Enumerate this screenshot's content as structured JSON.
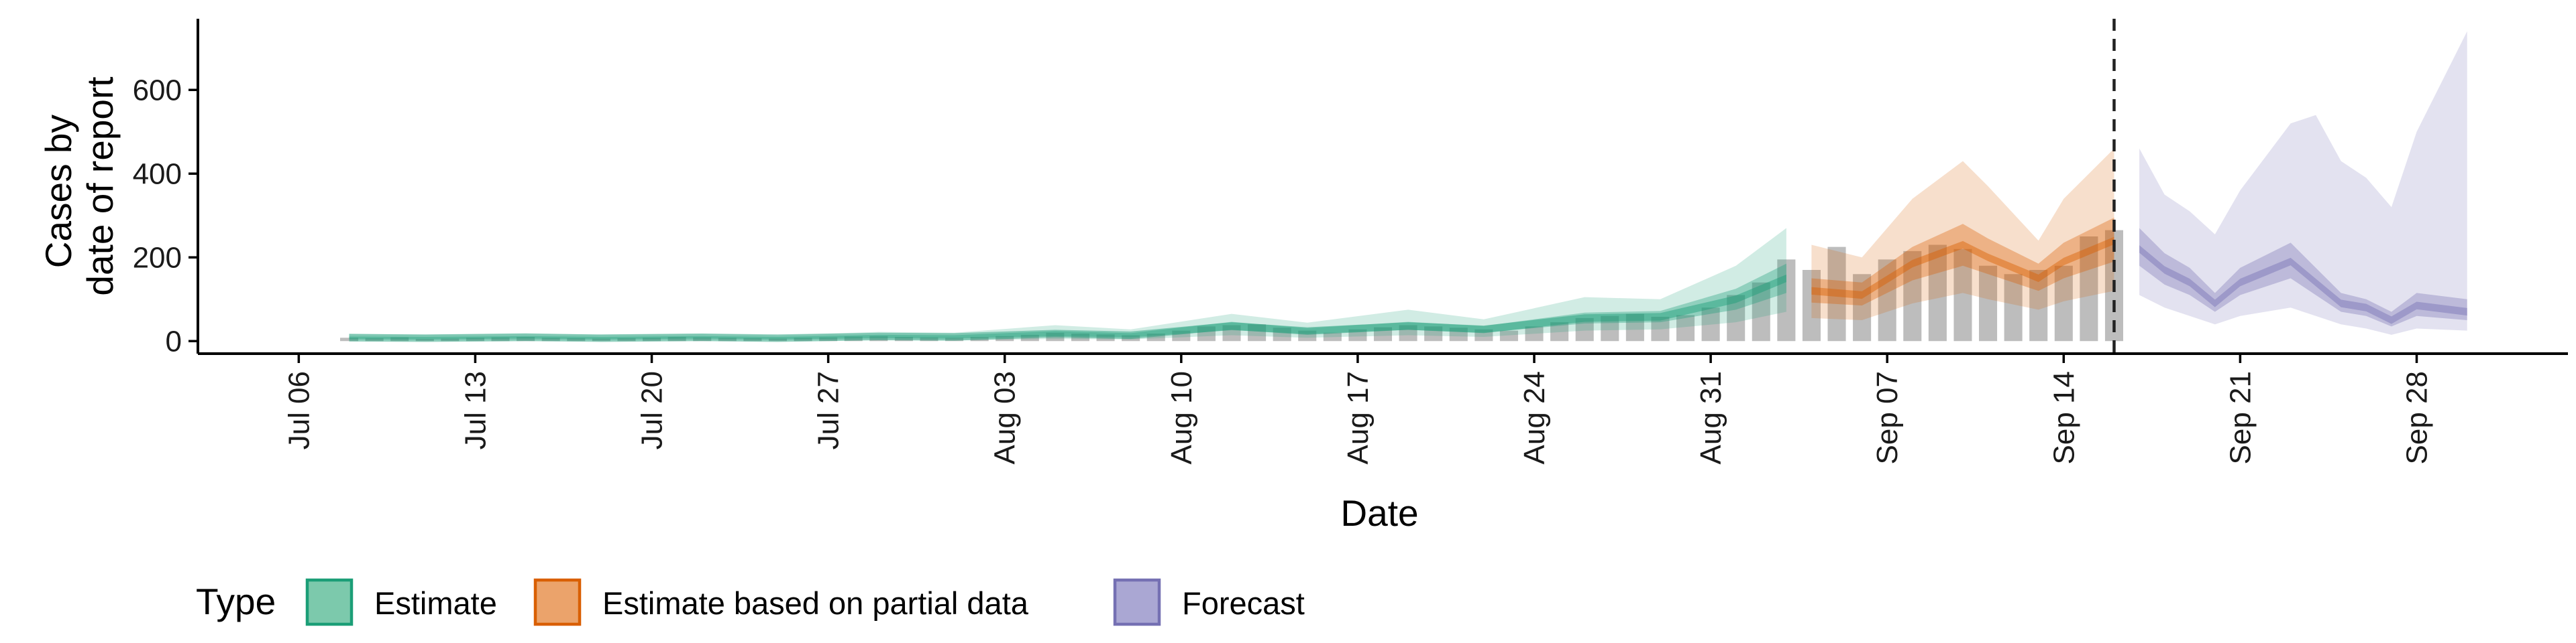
{
  "chart_data": {
    "type": "area",
    "title": "",
    "xlabel": "Date",
    "ylabel": [
      "Cases by",
      "date of report"
    ],
    "ylim": [
      -30,
      770
    ],
    "yticks": [
      0,
      200,
      400,
      600
    ],
    "xlim": [
      "2020-07-02",
      "2020-10-04"
    ],
    "xticks": [
      "2020-07-06",
      "2020-07-13",
      "2020-07-20",
      "2020-07-27",
      "2020-08-03",
      "2020-08-10",
      "2020-08-17",
      "2020-08-24",
      "2020-08-31",
      "2020-09-07",
      "2020-09-14",
      "2020-09-21",
      "2020-09-28"
    ],
    "xtick_labels": [
      "Jul 06",
      "Jul 13",
      "Jul 20",
      "Jul 27",
      "Aug 03",
      "Aug 10",
      "Aug 17",
      "Aug 24",
      "Aug 31",
      "Sep 07",
      "Sep 14",
      "Sep 21",
      "Sep 28"
    ],
    "cutoff_date": "2020-09-16",
    "grid": false,
    "legend": {
      "title": "Type",
      "position": "bottom",
      "items": [
        {
          "label": "Estimate",
          "fill": "#7cc9ac",
          "stroke": "#1b9e77"
        },
        {
          "label": "Estimate based on partial data",
          "fill": "#eba36b",
          "stroke": "#d95f02"
        },
        {
          "label": "Forecast",
          "fill": "#aaa7d3",
          "stroke": "#7570b3"
        }
      ]
    },
    "colors": {
      "Estimate": "#1b9e77",
      "Estimate based on partial data": "#d95f02",
      "Forecast": "#7570b3",
      "bars": "#bdbdbd"
    },
    "reported_cases": [
      {
        "date": "2020-07-08",
        "value": 8
      },
      {
        "date": "2020-07-09",
        "value": 7
      },
      {
        "date": "2020-07-10",
        "value": 9
      },
      {
        "date": "2020-07-11",
        "value": 5
      },
      {
        "date": "2020-07-12",
        "value": 6
      },
      {
        "date": "2020-07-13",
        "value": 8
      },
      {
        "date": "2020-07-14",
        "value": 9
      },
      {
        "date": "2020-07-15",
        "value": 10
      },
      {
        "date": "2020-07-16",
        "value": 8
      },
      {
        "date": "2020-07-17",
        "value": 7
      },
      {
        "date": "2020-07-18",
        "value": 6
      },
      {
        "date": "2020-07-19",
        "value": 7
      },
      {
        "date": "2020-07-20",
        "value": 8
      },
      {
        "date": "2020-07-21",
        "value": 10
      },
      {
        "date": "2020-07-22",
        "value": 9
      },
      {
        "date": "2020-07-23",
        "value": 8
      },
      {
        "date": "2020-07-24",
        "value": 7
      },
      {
        "date": "2020-07-25",
        "value": 6
      },
      {
        "date": "2020-07-26",
        "value": 8
      },
      {
        "date": "2020-07-27",
        "value": 9
      },
      {
        "date": "2020-07-28",
        "value": 11
      },
      {
        "date": "2020-07-29",
        "value": 12
      },
      {
        "date": "2020-07-30",
        "value": 10
      },
      {
        "date": "2020-07-31",
        "value": 9
      },
      {
        "date": "2020-08-01",
        "value": 8
      },
      {
        "date": "2020-08-02",
        "value": 10
      },
      {
        "date": "2020-08-03",
        "value": 12
      },
      {
        "date": "2020-08-04",
        "value": 15
      },
      {
        "date": "2020-08-05",
        "value": 20
      },
      {
        "date": "2020-08-06",
        "value": 18
      },
      {
        "date": "2020-08-07",
        "value": 16
      },
      {
        "date": "2020-08-08",
        "value": 14
      },
      {
        "date": "2020-08-09",
        "value": 18
      },
      {
        "date": "2020-08-10",
        "value": 25
      },
      {
        "date": "2020-08-11",
        "value": 35
      },
      {
        "date": "2020-08-12",
        "value": 38
      },
      {
        "date": "2020-08-13",
        "value": 40
      },
      {
        "date": "2020-08-14",
        "value": 32
      },
      {
        "date": "2020-08-15",
        "value": 25
      },
      {
        "date": "2020-08-16",
        "value": 20
      },
      {
        "date": "2020-08-17",
        "value": 28
      },
      {
        "date": "2020-08-18",
        "value": 33
      },
      {
        "date": "2020-08-19",
        "value": 38
      },
      {
        "date": "2020-08-20",
        "value": 35
      },
      {
        "date": "2020-08-21",
        "value": 32
      },
      {
        "date": "2020-08-22",
        "value": 28
      },
      {
        "date": "2020-08-23",
        "value": 25
      },
      {
        "date": "2020-08-24",
        "value": 35
      },
      {
        "date": "2020-08-25",
        "value": 45
      },
      {
        "date": "2020-08-26",
        "value": 55
      },
      {
        "date": "2020-08-27",
        "value": 60
      },
      {
        "date": "2020-08-28",
        "value": 65
      },
      {
        "date": "2020-08-29",
        "value": 58
      },
      {
        "date": "2020-08-30",
        "value": 62
      },
      {
        "date": "2020-08-31",
        "value": 80
      },
      {
        "date": "2020-09-01",
        "value": 110
      },
      {
        "date": "2020-09-02",
        "value": 140
      },
      {
        "date": "2020-09-03",
        "value": 195
      },
      {
        "date": "2020-09-04",
        "value": 170
      },
      {
        "date": "2020-09-05",
        "value": 225
      },
      {
        "date": "2020-09-06",
        "value": 160
      },
      {
        "date": "2020-09-07",
        "value": 195
      },
      {
        "date": "2020-09-08",
        "value": 215
      },
      {
        "date": "2020-09-09",
        "value": 230
      },
      {
        "date": "2020-09-10",
        "value": 220
      },
      {
        "date": "2020-09-11",
        "value": 180
      },
      {
        "date": "2020-09-12",
        "value": 160
      },
      {
        "date": "2020-09-13",
        "value": 170
      },
      {
        "date": "2020-09-14",
        "value": 180
      },
      {
        "date": "2020-09-15",
        "value": 250
      },
      {
        "date": "2020-09-16",
        "value": 265
      }
    ],
    "series": [
      {
        "name": "Estimate",
        "points": [
          {
            "date": "2020-07-08",
            "median": 8,
            "l50": 5,
            "u50": 11,
            "l90": 2,
            "u90": 18
          },
          {
            "date": "2020-07-11",
            "median": 7,
            "l50": 4,
            "u50": 10,
            "l90": 1,
            "u90": 15
          },
          {
            "date": "2020-07-15",
            "median": 9,
            "l50": 6,
            "u50": 12,
            "l90": 2,
            "u90": 19
          },
          {
            "date": "2020-07-18",
            "median": 7,
            "l50": 4,
            "u50": 10,
            "l90": 1,
            "u90": 15
          },
          {
            "date": "2020-07-22",
            "median": 9,
            "l50": 6,
            "u50": 12,
            "l90": 2,
            "u90": 18
          },
          {
            "date": "2020-07-25",
            "median": 7,
            "l50": 4,
            "u50": 10,
            "l90": 1,
            "u90": 14
          },
          {
            "date": "2020-07-29",
            "median": 11,
            "l50": 7,
            "u50": 15,
            "l90": 3,
            "u90": 22
          },
          {
            "date": "2020-08-01",
            "median": 10,
            "l50": 6,
            "u50": 14,
            "l90": 2,
            "u90": 20
          },
          {
            "date": "2020-08-05",
            "median": 18,
            "l50": 12,
            "u50": 24,
            "l90": 5,
            "u90": 38
          },
          {
            "date": "2020-08-08",
            "median": 14,
            "l50": 9,
            "u50": 19,
            "l90": 4,
            "u90": 28
          },
          {
            "date": "2020-08-12",
            "median": 36,
            "l50": 26,
            "u50": 46,
            "l90": 14,
            "u90": 65
          },
          {
            "date": "2020-08-15",
            "median": 24,
            "l50": 17,
            "u50": 31,
            "l90": 8,
            "u90": 44
          },
          {
            "date": "2020-08-19",
            "median": 36,
            "l50": 27,
            "u50": 46,
            "l90": 14,
            "u90": 75
          },
          {
            "date": "2020-08-22",
            "median": 28,
            "l50": 20,
            "u50": 36,
            "l90": 10,
            "u90": 52
          },
          {
            "date": "2020-08-26",
            "median": 55,
            "l50": 42,
            "u50": 68,
            "l90": 25,
            "u90": 105
          },
          {
            "date": "2020-08-29",
            "median": 58,
            "l50": 45,
            "u50": 72,
            "l90": 28,
            "u90": 100
          },
          {
            "date": "2020-09-01",
            "median": 100,
            "l50": 75,
            "u50": 125,
            "l90": 45,
            "u90": 180
          },
          {
            "date": "2020-09-03",
            "median": 150,
            "l50": 115,
            "u50": 185,
            "l90": 70,
            "u90": 270
          }
        ]
      },
      {
        "name": "Estimate based on partial data",
        "points": [
          {
            "date": "2020-09-04",
            "median": 120,
            "l50": 92,
            "u50": 150,
            "l90": 55,
            "u90": 230
          },
          {
            "date": "2020-09-06",
            "median": 110,
            "l50": 85,
            "u50": 140,
            "l90": 50,
            "u90": 200
          },
          {
            "date": "2020-09-08",
            "median": 185,
            "l50": 145,
            "u50": 225,
            "l90": 90,
            "u90": 340
          },
          {
            "date": "2020-09-10",
            "median": 230,
            "l50": 180,
            "u50": 280,
            "l90": 115,
            "u90": 430
          },
          {
            "date": "2020-09-11",
            "median": 200,
            "l50": 160,
            "u50": 245,
            "l90": 100,
            "u90": 370
          },
          {
            "date": "2020-09-13",
            "median": 150,
            "l50": 120,
            "u50": 185,
            "l90": 75,
            "u90": 240
          },
          {
            "date": "2020-09-14",
            "median": 190,
            "l50": 150,
            "u50": 235,
            "l90": 95,
            "u90": 340
          },
          {
            "date": "2020-09-16",
            "median": 240,
            "l50": 190,
            "u50": 295,
            "l90": 120,
            "u90": 460
          }
        ]
      },
      {
        "name": "Forecast",
        "points": [
          {
            "date": "2020-09-17",
            "median": 220,
            "l50": 180,
            "u50": 270,
            "l90": 110,
            "u90": 460
          },
          {
            "date": "2020-09-18",
            "median": 170,
            "l50": 135,
            "u50": 210,
            "l90": 80,
            "u90": 350
          },
          {
            "date": "2020-09-19",
            "median": 140,
            "l50": 110,
            "u50": 175,
            "l90": 60,
            "u90": 310
          },
          {
            "date": "2020-09-20",
            "median": 90,
            "l50": 70,
            "u50": 115,
            "l90": 40,
            "u90": 255
          },
          {
            "date": "2020-09-21",
            "median": 140,
            "l50": 110,
            "u50": 175,
            "l90": 60,
            "u90": 360
          },
          {
            "date": "2020-09-23",
            "median": 190,
            "l50": 150,
            "u50": 235,
            "l90": 80,
            "u90": 520
          },
          {
            "date": "2020-09-24",
            "median": 140,
            "l50": 110,
            "u50": 175,
            "l90": 60,
            "u90": 540
          },
          {
            "date": "2020-09-25",
            "median": 90,
            "l50": 70,
            "u50": 115,
            "l90": 40,
            "u90": 430
          },
          {
            "date": "2020-09-26",
            "median": 80,
            "l50": 60,
            "u50": 100,
            "l90": 30,
            "u90": 390
          },
          {
            "date": "2020-09-27",
            "median": 50,
            "l50": 35,
            "u50": 70,
            "l90": 15,
            "u90": 320
          },
          {
            "date": "2020-09-28",
            "median": 85,
            "l50": 60,
            "u50": 115,
            "l90": 30,
            "u90": 500
          },
          {
            "date": "2020-09-30",
            "median": 70,
            "l50": 50,
            "u50": 100,
            "l90": 25,
            "u90": 740
          }
        ]
      }
    ]
  }
}
